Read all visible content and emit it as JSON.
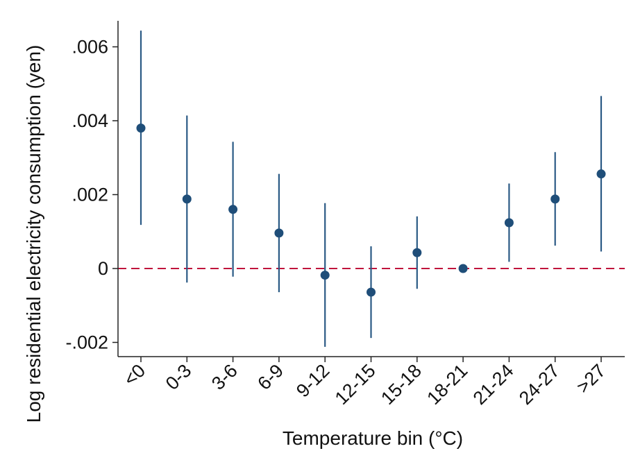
{
  "chart_data": {
    "type": "scatter",
    "title": "",
    "xlabel": "Temperature bin (°C)",
    "ylabel": "Log residential electricity consumption (yen)",
    "categories": [
      "<0",
      "0-3",
      "3-6",
      "6-9",
      "9-12",
      "12-15",
      "15-18",
      "18-21",
      "21-24",
      "24-27",
      ">27"
    ],
    "values": [
      0.0038,
      0.00188,
      0.0016,
      0.00096,
      -0.00018,
      -0.00064,
      0.00043,
      0.0,
      0.00124,
      0.00188,
      0.00256
    ],
    "ci_low": [
      0.00118,
      -0.00038,
      -0.00022,
      -0.00064,
      -0.00212,
      -0.00188,
      -0.00055,
      0.0,
      0.00018,
      0.00062,
      0.00046
    ],
    "ci_high": [
      0.00644,
      0.00414,
      0.00343,
      0.00256,
      0.00177,
      0.0006,
      0.00141,
      0.0,
      0.0023,
      0.00315,
      0.00467
    ],
    "yticks": [
      -0.002,
      0,
      0.002,
      0.004,
      0.006
    ],
    "ytick_labels": [
      "-.002",
      "0",
      ".002",
      ".004",
      ".006"
    ],
    "ylim": [
      -0.0024,
      0.0067
    ],
    "reference_line": 0,
    "grid": false,
    "colors": {
      "marker": "#1f4e79",
      "errorbar": "#2b5a85",
      "reference_line": "#c0143c",
      "axis": "#222222"
    }
  }
}
